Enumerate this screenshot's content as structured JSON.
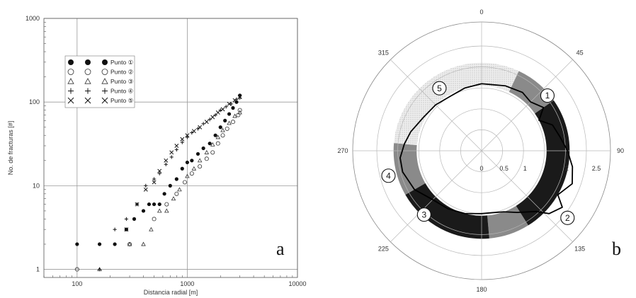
{
  "chart_data": [
    {
      "type": "scatter",
      "panel_label": "a",
      "xlabel": "Distancia radial [m]",
      "ylabel": "No. de fracturas [#]",
      "xscale": "log",
      "yscale": "log",
      "xlim": [
        50,
        10000
      ],
      "ylim": [
        0.8,
        1000
      ],
      "xticks": [
        "100",
        "1000",
        "10000"
      ],
      "yticks": [
        "1",
        "10",
        "100",
        "1000"
      ],
      "grid": true,
      "legend_position": "top-left",
      "series": [
        {
          "name": "Punto ①",
          "marker": "filled-circle",
          "points": [
            [
              100,
              2
            ],
            [
              160,
              2
            ],
            [
              220,
              2
            ],
            [
              280,
              3
            ],
            [
              330,
              4
            ],
            [
              400,
              5
            ],
            [
              450,
              6
            ],
            [
              500,
              6
            ],
            [
              560,
              6
            ],
            [
              620,
              8
            ],
            [
              700,
              10
            ],
            [
              800,
              12
            ],
            [
              900,
              16
            ],
            [
              1000,
              19
            ],
            [
              1100,
              20
            ],
            [
              1250,
              24
            ],
            [
              1400,
              28
            ],
            [
              1600,
              32
            ],
            [
              1800,
              40
            ],
            [
              2000,
              50
            ],
            [
              2200,
              60
            ],
            [
              2400,
              72
            ],
            [
              2600,
              85
            ],
            [
              2800,
              100
            ],
            [
              3000,
              120
            ]
          ]
        },
        {
          "name": "Punto ②",
          "marker": "open-circle",
          "points": [
            [
              100,
              1
            ],
            [
              300,
              2
            ],
            [
              500,
              4
            ],
            [
              650,
              6
            ],
            [
              800,
              8
            ],
            [
              950,
              11
            ],
            [
              1100,
              14
            ],
            [
              1300,
              17
            ],
            [
              1500,
              21
            ],
            [
              1700,
              25
            ],
            [
              1900,
              32
            ],
            [
              2100,
              40
            ],
            [
              2300,
              48
            ],
            [
              2600,
              58
            ],
            [
              2900,
              70
            ],
            [
              3000,
              80
            ]
          ]
        },
        {
          "name": "Punto ③",
          "marker": "triangle",
          "points": [
            [
              160,
              1
            ],
            [
              300,
              2
            ],
            [
              400,
              2
            ],
            [
              470,
              3
            ],
            [
              560,
              5
            ],
            [
              650,
              5
            ],
            [
              750,
              7
            ],
            [
              850,
              9
            ],
            [
              1000,
              13
            ],
            [
              1150,
              16
            ],
            [
              1300,
              20
            ],
            [
              1500,
              25
            ],
            [
              1700,
              31
            ],
            [
              1900,
              38
            ],
            [
              2100,
              46
            ],
            [
              2400,
              56
            ],
            [
              2700,
              68
            ],
            [
              3000,
              75
            ]
          ]
        },
        {
          "name": "Punto ④",
          "marker": "plus",
          "points": [
            [
              160,
              1
            ],
            [
              220,
              3
            ],
            [
              280,
              4
            ],
            [
              350,
              6
            ],
            [
              420,
              10
            ],
            [
              500,
              12
            ],
            [
              560,
              14
            ],
            [
              640,
              18
            ],
            [
              720,
              22
            ],
            [
              800,
              27
            ],
            [
              900,
              33
            ],
            [
              1000,
              38
            ],
            [
              1100,
              43
            ],
            [
              1250,
              48
            ],
            [
              1400,
              55
            ],
            [
              1600,
              62
            ],
            [
              1800,
              70
            ],
            [
              2000,
              80
            ],
            [
              2250,
              88
            ],
            [
              2500,
              95
            ],
            [
              2800,
              108
            ],
            [
              3000,
              112
            ]
          ]
        },
        {
          "name": "Punto ⑤",
          "marker": "x",
          "points": [
            [
              280,
              3
            ],
            [
              350,
              6
            ],
            [
              420,
              9
            ],
            [
              500,
              11
            ],
            [
              560,
              15
            ],
            [
              640,
              20
            ],
            [
              720,
              25
            ],
            [
              800,
              30
            ],
            [
              900,
              36
            ],
            [
              1000,
              40
            ],
            [
              1150,
              45
            ],
            [
              1300,
              50
            ],
            [
              1500,
              58
            ],
            [
              1700,
              66
            ],
            [
              1900,
              75
            ],
            [
              2100,
              82
            ],
            [
              2400,
              95
            ],
            [
              2700,
              105
            ],
            [
              3000,
              115
            ]
          ]
        }
      ]
    },
    {
      "type": "polar",
      "panel_label": "b",
      "angle_ticks": [
        "0",
        "45",
        "90",
        "135",
        "180",
        "225",
        "270",
        "315"
      ],
      "radial_ticks": [
        "0",
        "0.5",
        "1",
        "2",
        "2.5"
      ],
      "rlim": [
        0,
        2.5
      ],
      "sectors": [
        {
          "start_deg": 318,
          "end_deg": 25,
          "shade": "light-stipple",
          "color": "#dcdcdc"
        },
        {
          "start_deg": 25,
          "end_deg": 55,
          "shade": "medium",
          "color": "#8a8a8a"
        },
        {
          "start_deg": 55,
          "end_deg": 148,
          "shade": "dark",
          "color": "#1a1a1a"
        },
        {
          "start_deg": 148,
          "end_deg": 175,
          "shade": "medium",
          "color": "#8a8a8a"
        },
        {
          "start_deg": 175,
          "end_deg": 240,
          "shade": "dark",
          "color": "#1a1a1a"
        },
        {
          "start_deg": 240,
          "end_deg": 275,
          "shade": "medium",
          "color": "#8a8a8a"
        },
        {
          "start_deg": 275,
          "end_deg": 318,
          "shade": "light-stipple",
          "color": "#dcdcdc"
        }
      ],
      "ring_r": [
        1.55,
        2.1
      ],
      "profile": [
        [
          0,
          1.6
        ],
        [
          20,
          1.65
        ],
        [
          35,
          1.7
        ],
        [
          45,
          1.65
        ],
        [
          55,
          1.8
        ],
        [
          62,
          1.55
        ],
        [
          70,
          1.8
        ],
        [
          80,
          1.9
        ],
        [
          90,
          2.05
        ],
        [
          100,
          2.2
        ],
        [
          110,
          2.3
        ],
        [
          120,
          2.1
        ],
        [
          125,
          2.35
        ],
        [
          133,
          2.2
        ],
        [
          138,
          1.95
        ],
        [
          150,
          1.7
        ],
        [
          160,
          1.55
        ],
        [
          170,
          1.5
        ],
        [
          180,
          1.5
        ],
        [
          195,
          1.55
        ],
        [
          210,
          1.6
        ],
        [
          225,
          1.65
        ],
        [
          240,
          1.85
        ],
        [
          255,
          1.95
        ],
        [
          265,
          1.95
        ],
        [
          275,
          1.85
        ],
        [
          285,
          1.75
        ],
        [
          300,
          1.6
        ],
        [
          315,
          1.55
        ],
        [
          330,
          1.5
        ],
        [
          345,
          1.55
        ],
        [
          360,
          1.6
        ]
      ],
      "points": [
        {
          "label": "1",
          "angle_deg": 50,
          "r": 2.05
        },
        {
          "label": "2",
          "angle_deg": 128,
          "r": 2.6
        },
        {
          "label": "3",
          "angle_deg": 222,
          "r": 2.05
        },
        {
          "label": "4",
          "angle_deg": 255,
          "r": 2.3
        },
        {
          "label": "5",
          "angle_deg": 326,
          "r": 1.8
        }
      ]
    }
  ]
}
